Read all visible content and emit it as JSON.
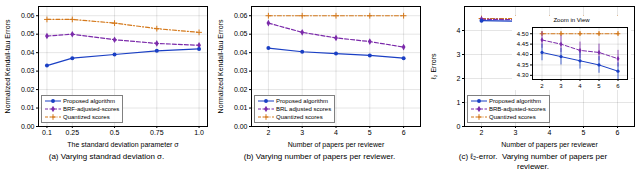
{
  "chart_data": [
    {
      "type": "line",
      "xlabel": "The standard deviation parameter σ",
      "ylabel": "Normalized Kendall-tau Errors",
      "caption": "(a) Varying standrad deviation σ.",
      "x": [
        0.1,
        0.25,
        0.5,
        0.75,
        1.0
      ],
      "xlim": [
        0.05,
        1.05
      ],
      "xticks": [
        0.1,
        0.25,
        0.5,
        0.75,
        {
          "value": 1.0,
          "label": "1.0"
        }
      ],
      "ylim": [
        0.0,
        0.065
      ],
      "yticks": [
        {
          "value": 0.0,
          "label": "0.00"
        },
        0.01,
        0.02,
        0.03,
        0.04,
        0.05,
        0.06
      ],
      "grid": true,
      "legend": "lower left",
      "series": [
        {
          "name": "Proposed algorithm",
          "color": "#1a3fc4",
          "marker": "circle",
          "line_style": "solid",
          "values": [
            0.033,
            0.037,
            0.039,
            0.041,
            0.042
          ]
        },
        {
          "name": "BRF-adjusted-scores",
          "color": "#7b2aaa",
          "marker": "diamond",
          "line_style": "dashed",
          "values": [
            0.049,
            0.05,
            0.047,
            0.045,
            0.044
          ]
        },
        {
          "name": "Quantized scores",
          "color": "#d4781a",
          "marker": "plus",
          "line_style": "dashdot",
          "values": [
            0.058,
            0.058,
            0.056,
            0.053,
            0.051
          ]
        }
      ]
    },
    {
      "type": "line",
      "xlabel": "Number of papers per reviewer",
      "ylabel": "Normalized Kendall-tau Errors",
      "caption": "(b) Varying number of papers per reviewer.",
      "x": [
        2,
        3,
        4,
        5,
        6
      ],
      "xlim": [
        1.5,
        6.5
      ],
      "xticks": [
        2,
        3,
        4,
        5,
        6
      ],
      "ylim": [
        0.0,
        0.065
      ],
      "yticks": [
        {
          "value": 0.0,
          "label": "0.00"
        },
        0.01,
        0.02,
        0.03,
        0.04,
        0.05,
        0.06
      ],
      "grid": true,
      "legend": "lower left",
      "series": [
        {
          "name": "Proposed algorithm",
          "color": "#1a3fc4",
          "marker": "circle",
          "line_style": "solid",
          "values": [
            0.0425,
            0.0405,
            0.0395,
            0.0385,
            0.037
          ]
        },
        {
          "name": "BRL adjusted scores",
          "color": "#7b2aaa",
          "marker": "diamond",
          "line_style": "dashed",
          "values": [
            0.056,
            0.051,
            0.048,
            0.046,
            0.043
          ]
        },
        {
          "name": "Quantized scores",
          "color": "#d4781a",
          "marker": "plus",
          "line_style": "dashdot",
          "values": [
            0.06,
            0.06,
            0.06,
            0.06,
            0.06
          ]
        }
      ]
    },
    {
      "type": "line",
      "xlabel": "Number of papers per reviewer",
      "ylabel": "ℓ₂ Errors",
      "caption": "(c) ℓ₂-error.  Varying number of papers per\nreviewer.",
      "x": [
        2,
        3,
        4,
        5,
        6
      ],
      "xlim": [
        1.5,
        6.5
      ],
      "xticks": [
        2,
        3,
        4,
        5,
        6
      ],
      "ylim": [
        0,
        5
      ],
      "yticks": [
        0,
        1,
        2,
        3,
        4
      ],
      "grid": true,
      "legend": "lower left",
      "series": [
        {
          "name": "Proposed algorithm",
          "color": "#1a3fc4",
          "marker": "circle",
          "line_style": "solid",
          "values": [
            4.41,
            4.39,
            4.37,
            4.35,
            4.32
          ],
          "errors": [
            0.04,
            0.04,
            0.04,
            0.04,
            0.04
          ]
        },
        {
          "name": "BRB-adjusted-scores",
          "color": "#7b2aaa",
          "marker": "diamond",
          "line_style": "dashed",
          "values": [
            4.47,
            4.45,
            4.42,
            4.41,
            4.38
          ],
          "errors": [
            0.04,
            0.04,
            0.04,
            0.04,
            0.04
          ]
        },
        {
          "name": "Quantized scores",
          "color": "#d4781a",
          "marker": "plus",
          "line_style": "dashdot",
          "values": [
            4.5,
            4.5,
            4.5,
            4.5,
            4.5
          ],
          "errors": [
            0.01,
            0.01,
            0.01,
            0.01,
            0.01
          ]
        }
      ],
      "inset": {
        "type": "line",
        "title": "Zoom in View",
        "x": [
          2,
          3,
          4,
          5,
          6
        ],
        "xlim": [
          1.5,
          6.5
        ],
        "xticks": [
          2,
          3,
          4,
          5,
          6
        ],
        "ylim": [
          4.28,
          4.53
        ],
        "yticks": [
          {
            "value": 4.3,
            "label": "4.30"
          },
          4.35,
          {
            "value": 4.4,
            "label": "4.40"
          },
          4.45,
          {
            "value": 4.5,
            "label": "4.50"
          }
        ],
        "grid": true,
        "series": [
          {
            "color": "#1a3fc4",
            "marker": "circle",
            "line_style": "solid",
            "values": [
              4.41,
              4.39,
              4.37,
              4.35,
              4.32
            ],
            "errors": [
              0.04,
              0.04,
              0.04,
              0.04,
              0.04
            ]
          },
          {
            "color": "#7b2aaa",
            "marker": "diamond",
            "line_style": "dashed",
            "values": [
              4.47,
              4.45,
              4.42,
              4.41,
              4.38
            ],
            "errors": [
              0.04,
              0.04,
              0.04,
              0.04,
              0.04
            ]
          },
          {
            "color": "#d4781a",
            "marker": "plus",
            "line_style": "dashdot",
            "values": [
              4.5,
              4.5,
              4.5,
              4.5,
              4.5
            ],
            "errors": [
              0.01,
              0.01,
              0.01,
              0.01,
              0.01
            ]
          }
        ]
      }
    }
  ]
}
